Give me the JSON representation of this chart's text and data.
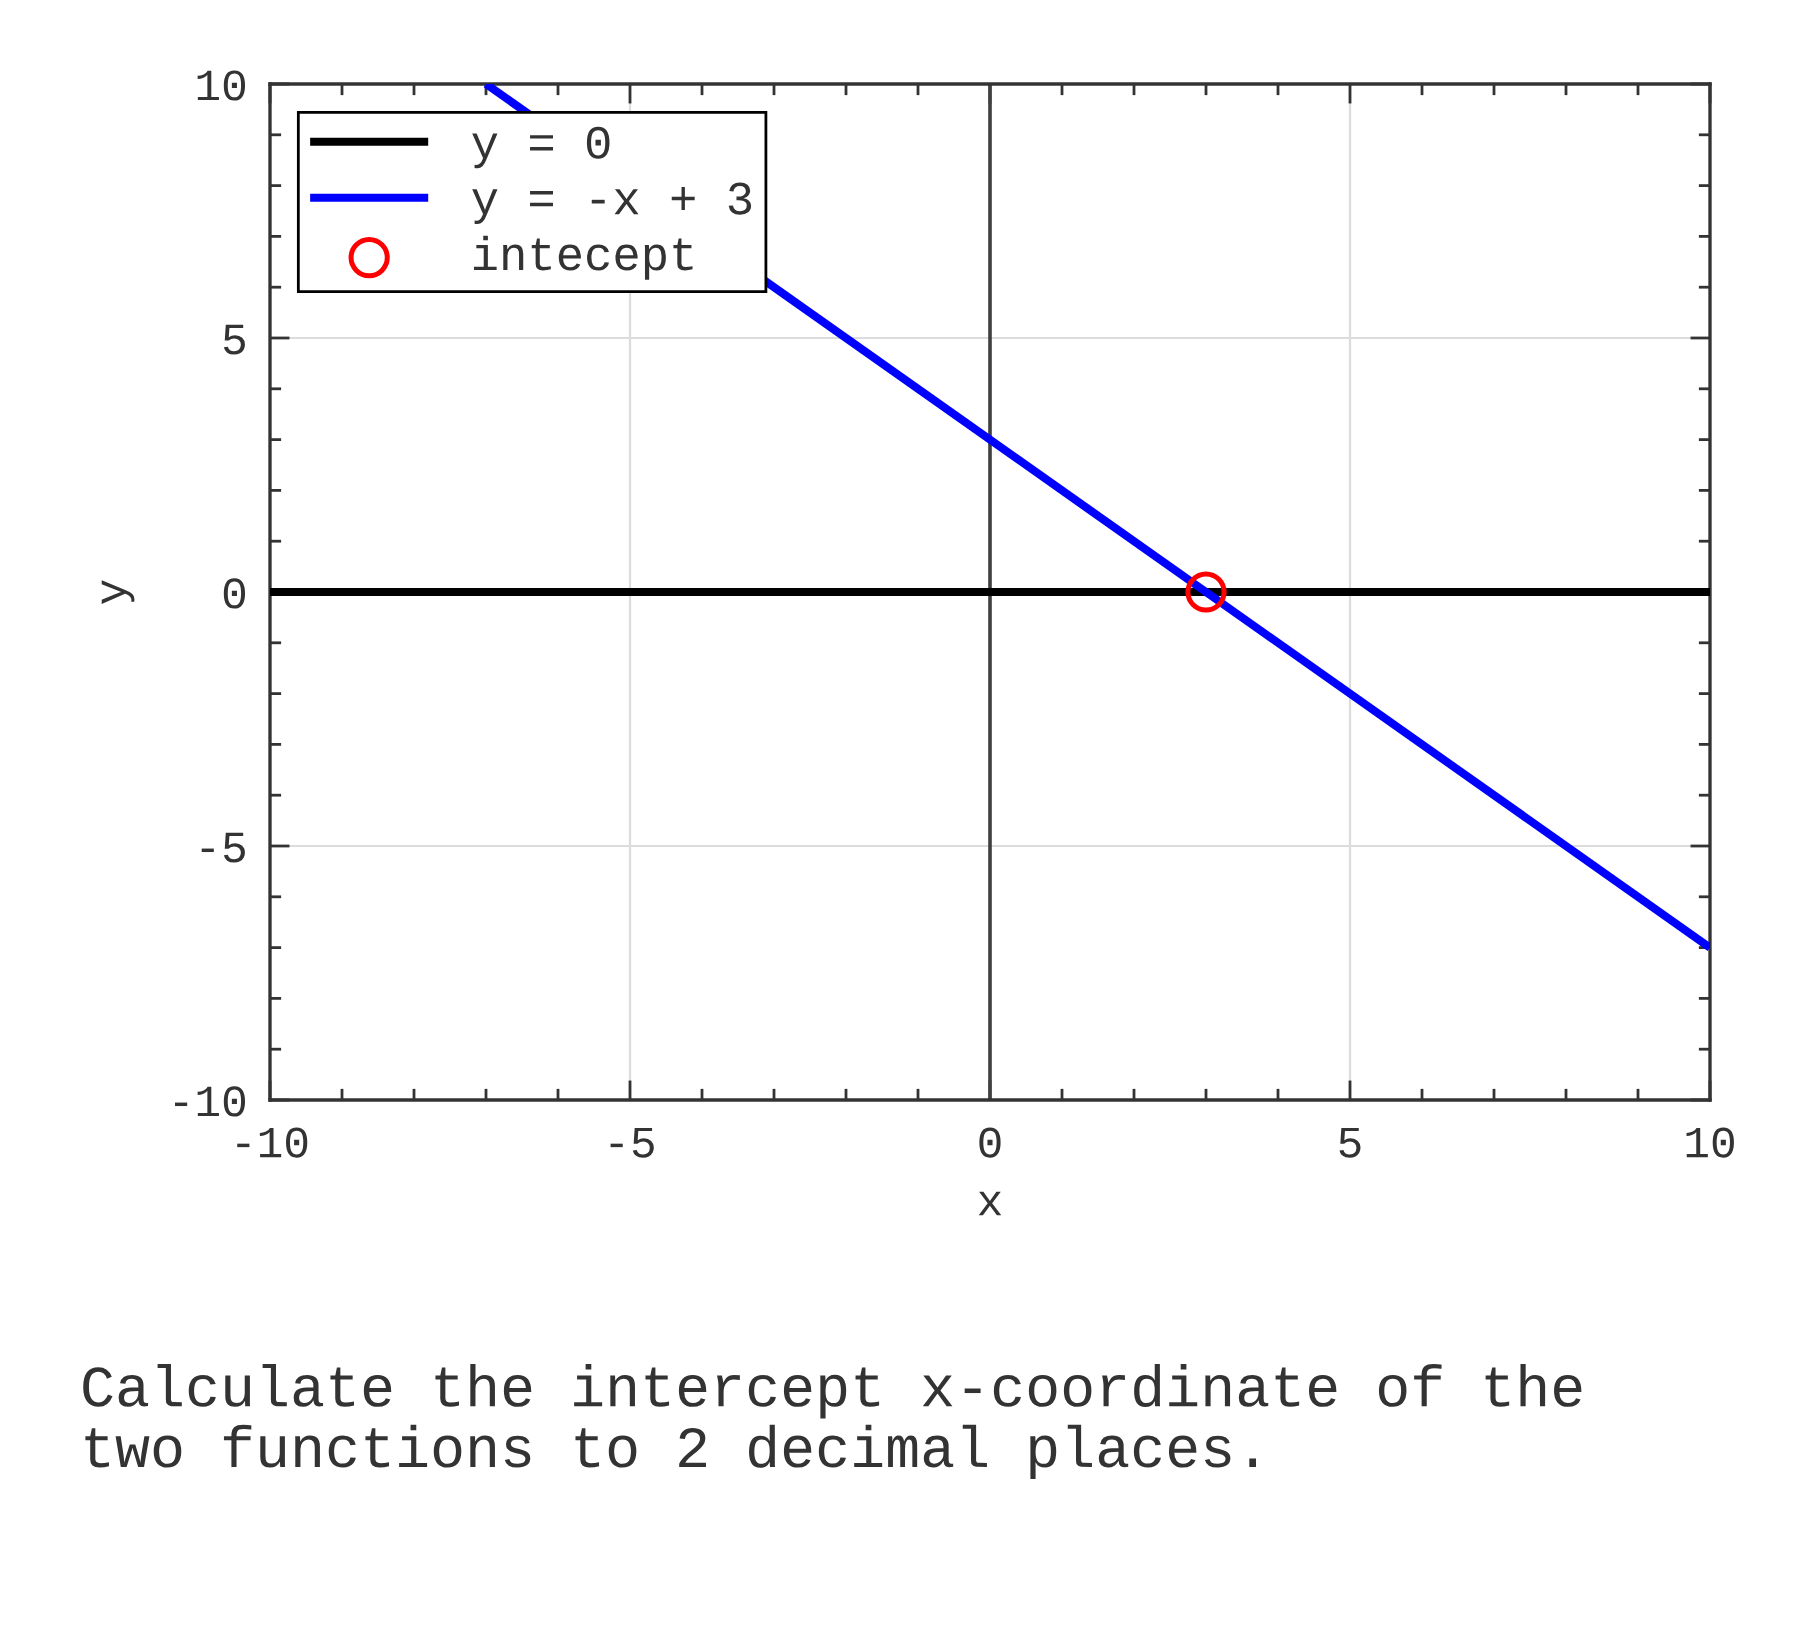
{
  "chart_data": {
    "type": "line",
    "xlabel": "x",
    "ylabel": "y",
    "xlim": [
      -10,
      10
    ],
    "ylim": [
      -10,
      10
    ],
    "xticks": [
      -10,
      -5,
      0,
      5,
      10
    ],
    "yticks": [
      -10,
      -5,
      0,
      5,
      10
    ],
    "grid": true,
    "legend": "top left",
    "series": [
      {
        "name": "y = 0",
        "color": "#000000",
        "x": [
          -10,
          10
        ],
        "values": [
          0,
          0
        ],
        "line_style": "solid"
      },
      {
        "name": "y = -x + 3",
        "color": "#0000ff",
        "x": [
          -7,
          10
        ],
        "values": [
          10,
          -7
        ],
        "line_style": "solid"
      },
      {
        "name": "intecept",
        "type": "scatter",
        "color": "#ff0000",
        "x": [
          3
        ],
        "values": [
          0
        ],
        "marker": "circle"
      }
    ],
    "ref_lines": [
      {
        "axis": "x",
        "value": 0,
        "color": "#404040",
        "line_style": "solid"
      }
    ],
    "annotations": [
      "Calculate the intercept x-coordinate of the\ntwo functions to 2 decimal places."
    ]
  }
}
